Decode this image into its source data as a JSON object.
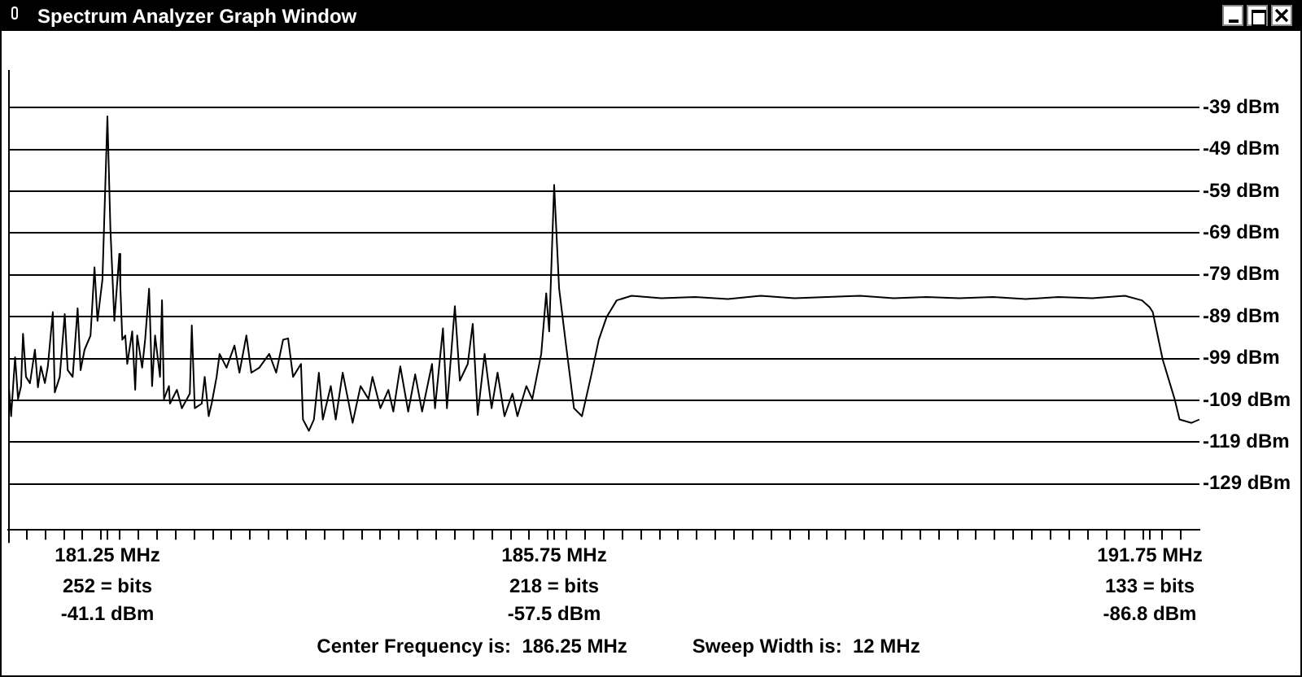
{
  "chart_data": {
    "type": "line",
    "title": "Spectrum Analyzer Graph Window",
    "x": [
      180.25,
      180.28,
      180.32,
      180.35,
      180.38,
      180.4,
      180.43,
      180.47,
      180.52,
      180.55,
      180.58,
      180.62,
      180.65,
      180.7,
      180.72,
      180.77,
      180.82,
      180.85,
      180.9,
      180.95,
      180.98,
      181.02,
      181.08,
      181.12,
      181.15,
      181.2,
      181.25,
      181.28,
      181.32,
      181.37,
      181.38,
      181.4,
      181.43,
      181.45,
      181.5,
      181.53,
      181.55,
      181.6,
      181.63,
      181.67,
      181.7,
      181.73,
      181.78,
      181.8,
      181.82,
      181.87,
      181.88,
      181.95,
      182.0,
      182.08,
      182.1,
      182.13,
      182.2,
      182.23,
      182.27,
      182.3,
      182.35,
      182.38,
      182.45,
      182.53,
      182.58,
      182.65,
      182.7,
      182.78,
      182.88,
      182.95,
      183.02,
      183.07,
      183.12,
      183.2,
      183.22,
      183.28,
      183.33,
      183.38,
      183.42,
      183.5,
      183.55,
      183.62,
      183.72,
      183.8,
      183.88,
      183.92,
      184.0,
      184.08,
      184.13,
      184.2,
      184.28,
      184.35,
      184.42,
      184.52,
      184.55,
      184.63,
      184.67,
      184.75,
      184.8,
      184.88,
      184.93,
      184.98,
      185.05,
      185.12,
      185.18,
      185.25,
      185.33,
      185.38,
      185.47,
      185.53,
      185.62,
      185.67,
      185.7,
      185.75,
      185.8,
      185.87,
      185.95,
      186.03,
      186.12,
      186.2,
      186.28,
      186.38,
      186.53,
      186.83,
      187.17,
      187.5,
      187.83,
      188.17,
      188.5,
      188.83,
      189.17,
      189.5,
      189.83,
      190.17,
      190.5,
      190.83,
      191.17,
      191.5,
      191.67,
      191.75,
      191.78,
      191.88,
      192.0,
      192.05,
      192.17,
      192.25
    ],
    "values": [
      -103.4,
      -112.8,
      -98.7,
      -108.7,
      -105.6,
      -93.1,
      -103.4,
      -104.9,
      -96.9,
      -105.9,
      -100.9,
      -104.9,
      -100.9,
      -87.9,
      -107.1,
      -103.4,
      -88.4,
      -101.8,
      -103.4,
      -87,
      -101.8,
      -96.9,
      -93.5,
      -77.2,
      -90,
      -80.1,
      -41.1,
      -67.9,
      -90,
      -74,
      -81.5,
      -94.5,
      -93.5,
      -100.3,
      -92.5,
      -106.5,
      -93.5,
      -101.2,
      -94.5,
      -82.3,
      -105.6,
      -93.5,
      -103.4,
      -85.1,
      -108.7,
      -105.6,
      -109.8,
      -106.5,
      -110.9,
      -107.4,
      -91.1,
      -110.9,
      -109.8,
      -103.4,
      -112.8,
      -109.8,
      -103.4,
      -97.9,
      -101.2,
      -95.9,
      -102.4,
      -93.5,
      -102.4,
      -101.2,
      -97.9,
      -102.4,
      -94.5,
      -94.2,
      -103.4,
      -100.3,
      -113.6,
      -116.3,
      -113.6,
      -102.4,
      -113.6,
      -105.6,
      -113.6,
      -102.4,
      -114.4,
      -105.6,
      -108.7,
      -103.4,
      -110.9,
      -106.5,
      -111.7,
      -100.9,
      -111.7,
      -102.8,
      -111.7,
      -100.3,
      -110.9,
      -91.8,
      -110.9,
      -86.5,
      -104.3,
      -100.3,
      -90.7,
      -112.5,
      -97.9,
      -110.9,
      -102.4,
      -112.8,
      -107.4,
      -112.8,
      -105.6,
      -108.7,
      -97.9,
      -83.4,
      -92.5,
      -57.5,
      -82.3,
      -95.9,
      -110.9,
      -112.8,
      -103.4,
      -94.5,
      -89,
      -85.1,
      -84,
      -84.6,
      -84.3,
      -84.8,
      -84,
      -84.6,
      -84.3,
      -84,
      -84.6,
      -84.3,
      -84.6,
      -84.3,
      -84.8,
      -84.3,
      -84.6,
      -84,
      -85.1,
      -86.8,
      -87.9,
      -99.3,
      -108.7,
      -113.6,
      -114.4,
      -113.6
    ],
    "color": "#000000",
    "marker": "none",
    "line_style": "solid",
    "xlim": [
      180.25,
      192.25
    ],
    "xticks": [
      {
        "value": 180.4375,
        "label": null
      },
      {
        "value": 180.625,
        "label": null
      },
      {
        "value": 180.8125,
        "label": null
      },
      {
        "value": 181,
        "label": null
      },
      {
        "value": 181.1875,
        "label": null
      },
      {
        "value": 181.25,
        "label": "181.25 MHz"
      },
      {
        "value": 181.375,
        "label": null
      },
      {
        "value": 181.5625,
        "label": null
      },
      {
        "value": 181.75,
        "label": null
      },
      {
        "value": 181.9375,
        "label": null
      },
      {
        "value": 182.125,
        "label": null
      },
      {
        "value": 182.3125,
        "label": null
      },
      {
        "value": 182.5,
        "label": null
      },
      {
        "value": 182.6875,
        "label": null
      },
      {
        "value": 182.875,
        "label": null
      },
      {
        "value": 183.0625,
        "label": null
      },
      {
        "value": 183.25,
        "label": null
      },
      {
        "value": 183.4375,
        "label": null
      },
      {
        "value": 183.625,
        "label": null
      },
      {
        "value": 183.8125,
        "label": null
      },
      {
        "value": 184,
        "label": null
      },
      {
        "value": 184.1875,
        "label": null
      },
      {
        "value": 184.375,
        "label": null
      },
      {
        "value": 184.5625,
        "label": null
      },
      {
        "value": 184.75,
        "label": null
      },
      {
        "value": 184.9375,
        "label": null
      },
      {
        "value": 185.125,
        "label": null
      },
      {
        "value": 185.3125,
        "label": null
      },
      {
        "value": 185.5,
        "label": null
      },
      {
        "value": 185.6875,
        "label": null
      },
      {
        "value": 185.75,
        "label": "185.75 MHz"
      },
      {
        "value": 185.875,
        "label": null
      },
      {
        "value": 186.0625,
        "label": null
      },
      {
        "value": 186.25,
        "label": null
      },
      {
        "value": 186.4375,
        "label": null
      },
      {
        "value": 186.625,
        "label": null
      },
      {
        "value": 186.8125,
        "label": null
      },
      {
        "value": 187,
        "label": null
      },
      {
        "value": 187.1875,
        "label": null
      },
      {
        "value": 187.375,
        "label": null
      },
      {
        "value": 187.5625,
        "label": null
      },
      {
        "value": 187.75,
        "label": null
      },
      {
        "value": 187.9375,
        "label": null
      },
      {
        "value": 188.125,
        "label": null
      },
      {
        "value": 188.3125,
        "label": null
      },
      {
        "value": 188.5,
        "label": null
      },
      {
        "value": 188.6875,
        "label": null
      },
      {
        "value": 188.875,
        "label": null
      },
      {
        "value": 189.0625,
        "label": null
      },
      {
        "value": 189.25,
        "label": null
      },
      {
        "value": 189.4375,
        "label": null
      },
      {
        "value": 189.625,
        "label": null
      },
      {
        "value": 189.8125,
        "label": null
      },
      {
        "value": 190,
        "label": null
      },
      {
        "value": 190.1875,
        "label": null
      },
      {
        "value": 190.375,
        "label": null
      },
      {
        "value": 190.5625,
        "label": null
      },
      {
        "value": 190.75,
        "label": null
      },
      {
        "value": 190.9375,
        "label": null
      },
      {
        "value": 191.125,
        "label": null
      },
      {
        "value": 191.3125,
        "label": null
      },
      {
        "value": 191.5,
        "label": null
      },
      {
        "value": 191.6875,
        "label": null
      },
      {
        "value": 191.75,
        "label": "191.75 MHz"
      },
      {
        "value": 191.875,
        "label": null
      },
      {
        "value": 192.0625,
        "label": null
      }
    ],
    "ylim": [
      -140,
      -30
    ],
    "yticks": [
      {
        "value": -39,
        "label": "-39 dBm"
      },
      {
        "value": -49,
        "label": "-49 dBm"
      },
      {
        "value": -59,
        "label": "-59 dBm"
      },
      {
        "value": -69,
        "label": "-69 dBm"
      },
      {
        "value": -79,
        "label": "-79 dBm"
      },
      {
        "value": -89,
        "label": "-89 dBm"
      },
      {
        "value": -99,
        "label": "-99 dBm"
      },
      {
        "value": -109,
        "label": "-109 dBm"
      },
      {
        "value": -119,
        "label": "-119 dBm"
      },
      {
        "value": -129,
        "label": "-129 dBm"
      }
    ],
    "grid": "y",
    "annotations": [
      "252 = bits\n-41.1 dBm",
      "218 = bits\n-57.5 dBm",
      "133 = bits\n-86.8 dBm",
      "Center Frequency is:  186.25 MHz",
      "Sweep Width is:  12 MHz"
    ]
  }
}
